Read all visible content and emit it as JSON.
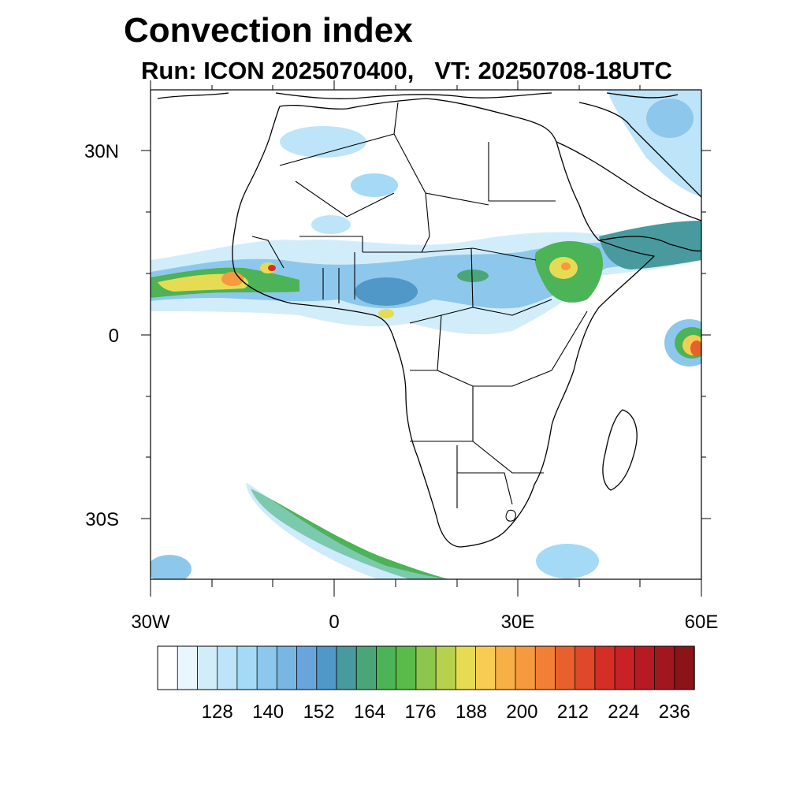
{
  "title": "Convection index",
  "subtitle": {
    "run": "Run: ICON 2025070400,",
    "vt": "VT: 20250708-18UTC"
  },
  "map": {
    "lat_labels": [
      "30N",
      "0",
      "30S"
    ],
    "lon_labels": [
      "30W",
      "0",
      "30E",
      "60E"
    ],
    "lat_range": [
      -40,
      40
    ],
    "lon_range": [
      -30,
      60
    ]
  },
  "colorbar": {
    "labels": [
      "128",
      "140",
      "152",
      "164",
      "176",
      "188",
      "200",
      "212",
      "224",
      "236"
    ],
    "colors": [
      "#ffffff",
      "#e9f6fd",
      "#d2edfa",
      "#bde4f8",
      "#a4daf6",
      "#8dc8ec",
      "#79b6e4",
      "#6aa4dc",
      "#4f98c8",
      "#489a9e",
      "#4aa679",
      "#4cb357",
      "#5bbb4a",
      "#8cc64d",
      "#b7d14e",
      "#e6dc54",
      "#f6cd52",
      "#f7b046",
      "#f59a3e",
      "#f17f35",
      "#e8612c",
      "#df4828",
      "#d52e27",
      "#c82126",
      "#b81a23",
      "#a2171f",
      "#8a1418"
    ]
  },
  "legend_colors": {
    "land_outline": "#000000",
    "background": "#ffffff"
  }
}
